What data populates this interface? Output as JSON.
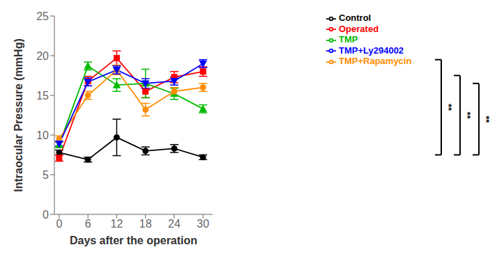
{
  "chart_data": {
    "type": "line",
    "xlabel": "Days after the operation",
    "ylabel": "Intraocular Pressure (mmHg)",
    "x": [
      0,
      6,
      12,
      18,
      24,
      30
    ],
    "series": [
      {
        "name": "Control",
        "color": "#000000",
        "marker": "circle",
        "values": [
          7.8,
          6.9,
          9.7,
          8.0,
          8.3,
          7.2
        ],
        "yerr": [
          0.3,
          0.3,
          2.3,
          0.5,
          0.5,
          0.3
        ]
      },
      {
        "name": "Operated",
        "color": "#FF0000",
        "marker": "square",
        "values": [
          7.1,
          16.8,
          19.7,
          15.5,
          17.3,
          18.0
        ],
        "yerr": [
          0.4,
          0.6,
          0.9,
          0.8,
          0.7,
          0.6
        ]
      },
      {
        "name": "TMP",
        "color": "#00BB00",
        "marker": "triangle-up",
        "values": [
          8.8,
          18.7,
          16.3,
          16.5,
          15.2,
          13.3
        ],
        "yerr": [
          0.4,
          0.5,
          0.8,
          1.8,
          0.7,
          0.5
        ]
      },
      {
        "name": "TMP+Rapamycin",
        "color": "#FF8C00",
        "marker": "circle",
        "values": [
          9.5,
          15.0,
          18.2,
          13.2,
          15.5,
          16.0
        ],
        "yerr": [
          0.4,
          0.5,
          0.6,
          0.8,
          0.5,
          0.5
        ]
      },
      {
        "name": "TMP+Ly294002",
        "color": "#0000FF",
        "marker": "triangle-down",
        "values": [
          8.9,
          16.7,
          18.2,
          16.5,
          16.8,
          19.0
        ],
        "yerr": [
          0.3,
          0.5,
          0.5,
          0.6,
          0.5,
          0.5
        ]
      }
    ],
    "xlim": [
      -1,
      32
    ],
    "ylim": [
      0,
      25
    ],
    "xticks": [
      0,
      6,
      12,
      18,
      24,
      30
    ],
    "yticks": [
      0,
      5,
      10,
      15,
      20,
      25
    ],
    "grid": false,
    "legend": "right",
    "annotations": [
      {
        "text": "**",
        "y": [
          7.5,
          19.5
        ]
      },
      {
        "text": "**",
        "y": [
          7.5,
          17.5
        ]
      },
      {
        "text": "**",
        "y": [
          7.5,
          16.5
        ]
      }
    ]
  }
}
